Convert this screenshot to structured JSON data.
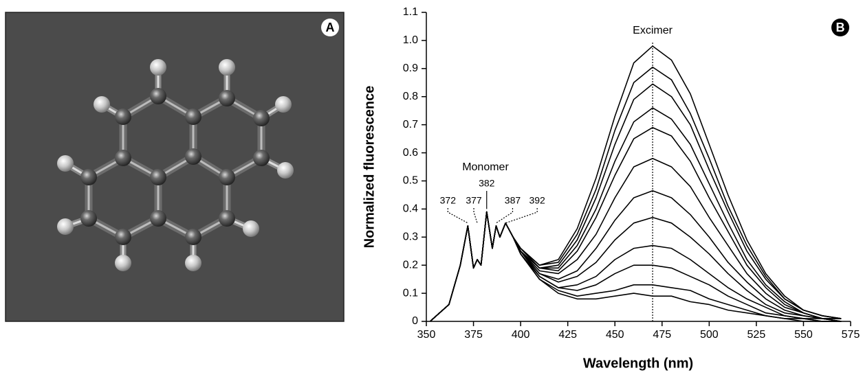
{
  "panel_a": {
    "label": "A"
  },
  "chart_data": {
    "type": "line",
    "panel_label": "B",
    "x_label": "Wavelength (nm)",
    "y_label": "Normalized fluorescence",
    "annotations": [
      {
        "text": "Monomer"
      },
      {
        "text": "Excimer",
        "x": 470
      }
    ],
    "peaks": [
      372,
      377,
      382,
      387,
      392
    ],
    "x": [
      352,
      362,
      368,
      372,
      375,
      377,
      379,
      382,
      385,
      387,
      389,
      392,
      396,
      400,
      410,
      420,
      430,
      440,
      450,
      460,
      470,
      480,
      490,
      500,
      510,
      520,
      530,
      540,
      550,
      560,
      570
    ],
    "series": [
      {
        "color": "#000",
        "values": [
          0,
          0.06,
          0.2,
          0.34,
          0.19,
          0.22,
          0.2,
          0.39,
          0.26,
          0.34,
          0.3,
          0.35,
          0.3,
          0.26,
          0.2,
          0.22,
          0.33,
          0.51,
          0.73,
          0.92,
          0.98,
          0.93,
          0.81,
          0.63,
          0.45,
          0.29,
          0.17,
          0.09,
          0.04,
          0.02,
          0.01
        ]
      },
      {
        "color": "#000",
        "values": [
          0,
          0.06,
          0.2,
          0.34,
          0.19,
          0.22,
          0.2,
          0.39,
          0.26,
          0.34,
          0.3,
          0.35,
          0.3,
          0.26,
          0.2,
          0.21,
          0.31,
          0.47,
          0.68,
          0.85,
          0.905,
          0.86,
          0.74,
          0.58,
          0.41,
          0.27,
          0.16,
          0.08,
          0.04,
          0.02,
          0.01
        ]
      },
      {
        "color": "#000",
        "values": [
          0,
          0.06,
          0.2,
          0.34,
          0.19,
          0.22,
          0.2,
          0.39,
          0.26,
          0.34,
          0.3,
          0.35,
          0.3,
          0.26,
          0.19,
          0.2,
          0.29,
          0.44,
          0.63,
          0.79,
          0.845,
          0.8,
          0.7,
          0.54,
          0.39,
          0.25,
          0.15,
          0.08,
          0.04,
          0.02,
          0.01
        ]
      },
      {
        "color": "#000",
        "values": [
          0,
          0.06,
          0.2,
          0.34,
          0.19,
          0.22,
          0.2,
          0.39,
          0.26,
          0.34,
          0.3,
          0.35,
          0.3,
          0.26,
          0.19,
          0.19,
          0.27,
          0.4,
          0.57,
          0.71,
          0.76,
          0.72,
          0.63,
          0.49,
          0.35,
          0.22,
          0.13,
          0.07,
          0.03,
          0.01,
          0.01
        ]
      },
      {
        "color": "#000",
        "values": [
          0,
          0.06,
          0.2,
          0.34,
          0.19,
          0.22,
          0.2,
          0.39,
          0.26,
          0.34,
          0.3,
          0.35,
          0.3,
          0.25,
          0.19,
          0.18,
          0.25,
          0.37,
          0.52,
          0.65,
          0.69,
          0.66,
          0.57,
          0.44,
          0.32,
          0.2,
          0.12,
          0.06,
          0.03,
          0.01,
          0.01
        ]
      },
      {
        "color": "#000",
        "values": [
          0,
          0.06,
          0.2,
          0.34,
          0.19,
          0.22,
          0.2,
          0.39,
          0.26,
          0.34,
          0.3,
          0.35,
          0.3,
          0.25,
          0.18,
          0.17,
          0.22,
          0.31,
          0.44,
          0.55,
          0.58,
          0.55,
          0.48,
          0.37,
          0.27,
          0.17,
          0.1,
          0.05,
          0.03,
          0.01,
          0
        ]
      },
      {
        "color": "#000",
        "values": [
          0,
          0.06,
          0.2,
          0.34,
          0.19,
          0.22,
          0.2,
          0.39,
          0.26,
          0.34,
          0.3,
          0.35,
          0.3,
          0.25,
          0.17,
          0.15,
          0.18,
          0.26,
          0.36,
          0.44,
          0.465,
          0.44,
          0.38,
          0.3,
          0.21,
          0.14,
          0.08,
          0.04,
          0.02,
          0.01,
          0
        ]
      },
      {
        "color": "#000",
        "values": [
          0,
          0.06,
          0.2,
          0.34,
          0.19,
          0.22,
          0.2,
          0.39,
          0.26,
          0.34,
          0.3,
          0.35,
          0.3,
          0.25,
          0.17,
          0.14,
          0.16,
          0.21,
          0.29,
          0.35,
          0.37,
          0.35,
          0.3,
          0.24,
          0.17,
          0.11,
          0.06,
          0.03,
          0.02,
          0.01,
          0
        ]
      },
      {
        "color": "#000",
        "values": [
          0,
          0.06,
          0.2,
          0.34,
          0.19,
          0.22,
          0.2,
          0.39,
          0.26,
          0.34,
          0.3,
          0.35,
          0.3,
          0.25,
          0.16,
          0.12,
          0.13,
          0.16,
          0.22,
          0.26,
          0.27,
          0.26,
          0.22,
          0.17,
          0.12,
          0.08,
          0.05,
          0.02,
          0.01,
          0.01,
          0
        ]
      },
      {
        "color": "#000",
        "values": [
          0,
          0.06,
          0.2,
          0.34,
          0.19,
          0.22,
          0.2,
          0.39,
          0.26,
          0.34,
          0.3,
          0.35,
          0.3,
          0.24,
          0.16,
          0.12,
          0.11,
          0.13,
          0.17,
          0.2,
          0.2,
          0.19,
          0.16,
          0.13,
          0.09,
          0.06,
          0.03,
          0.02,
          0.01,
          0,
          0
        ]
      },
      {
        "color": "#000",
        "values": [
          0,
          0.06,
          0.2,
          0.34,
          0.19,
          0.22,
          0.2,
          0.39,
          0.26,
          0.34,
          0.3,
          0.35,
          0.3,
          0.24,
          0.15,
          0.11,
          0.09,
          0.1,
          0.11,
          0.13,
          0.13,
          0.12,
          0.11,
          0.08,
          0.06,
          0.04,
          0.02,
          0.01,
          0.01,
          0,
          0
        ]
      },
      {
        "color": "#000",
        "values": [
          0,
          0.06,
          0.2,
          0.34,
          0.19,
          0.22,
          0.2,
          0.39,
          0.26,
          0.34,
          0.3,
          0.35,
          0.3,
          0.24,
          0.15,
          0.1,
          0.08,
          0.08,
          0.09,
          0.1,
          0.09,
          0.09,
          0.07,
          0.06,
          0.04,
          0.03,
          0.02,
          0.01,
          0,
          0,
          0
        ]
      }
    ],
    "xlim": [
      350,
      575
    ],
    "xticks": [
      350,
      375,
      400,
      425,
      450,
      475,
      500,
      525,
      550,
      575
    ],
    "ylim": [
      0,
      1.1
    ],
    "yticks": [
      0,
      0.1,
      0.2,
      0.3,
      0.4,
      0.5,
      0.6,
      0.7,
      0.8,
      0.9,
      {
        "value": 1,
        "label": "1.0"
      },
      1.1
    ],
    "grid": false
  }
}
